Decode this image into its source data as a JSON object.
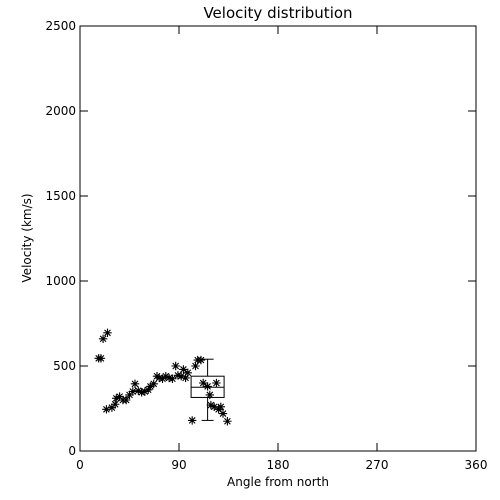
{
  "chart_data": {
    "type": "scatter",
    "title": "Velocity distribution",
    "xlabel": "Angle from north",
    "ylabel": "Velocity (km/s)",
    "xlim": [
      0,
      360
    ],
    "ylim": [
      0,
      2500
    ],
    "xticks": [
      0,
      90,
      180,
      270,
      360
    ],
    "yticks": [
      0,
      500,
      1000,
      1500,
      2000,
      2500
    ],
    "marker": "asterisk",
    "grid": false,
    "points": [
      {
        "x": 17,
        "y": 545
      },
      {
        "x": 19,
        "y": 545
      },
      {
        "x": 21,
        "y": 660
      },
      {
        "x": 25,
        "y": 695
      },
      {
        "x": 24,
        "y": 245
      },
      {
        "x": 29,
        "y": 255
      },
      {
        "x": 32,
        "y": 275
      },
      {
        "x": 33,
        "y": 310
      },
      {
        "x": 36,
        "y": 320
      },
      {
        "x": 39,
        "y": 300
      },
      {
        "x": 42,
        "y": 300
      },
      {
        "x": 45,
        "y": 330
      },
      {
        "x": 48,
        "y": 350
      },
      {
        "x": 50,
        "y": 395
      },
      {
        "x": 53,
        "y": 355
      },
      {
        "x": 56,
        "y": 345
      },
      {
        "x": 59,
        "y": 350
      },
      {
        "x": 62,
        "y": 360
      },
      {
        "x": 64,
        "y": 380
      },
      {
        "x": 67,
        "y": 395
      },
      {
        "x": 70,
        "y": 440
      },
      {
        "x": 72,
        "y": 430
      },
      {
        "x": 75,
        "y": 425
      },
      {
        "x": 78,
        "y": 440
      },
      {
        "x": 81,
        "y": 430
      },
      {
        "x": 84,
        "y": 425
      },
      {
        "x": 87,
        "y": 500
      },
      {
        "x": 89,
        "y": 445
      },
      {
        "x": 92,
        "y": 440
      },
      {
        "x": 94,
        "y": 480
      },
      {
        "x": 96,
        "y": 430
      },
      {
        "x": 98,
        "y": 460
      },
      {
        "x": 102,
        "y": 180
      },
      {
        "x": 105,
        "y": 500
      },
      {
        "x": 107,
        "y": 535
      },
      {
        "x": 110,
        "y": 535
      },
      {
        "x": 112,
        "y": 400
      },
      {
        "x": 116,
        "y": 380
      },
      {
        "x": 118,
        "y": 330
      },
      {
        "x": 119,
        "y": 270
      },
      {
        "x": 122,
        "y": 260
      },
      {
        "x": 124,
        "y": 400
      },
      {
        "x": 126,
        "y": 245
      },
      {
        "x": 128,
        "y": 260
      },
      {
        "x": 130,
        "y": 220
      },
      {
        "x": 134,
        "y": 175
      }
    ],
    "boxplot": {
      "x_range": [
        101,
        131
      ],
      "x_center": 116,
      "whisker_low": 180,
      "q1": 315,
      "median": 375,
      "q3": 440,
      "whisker_high": 540
    }
  }
}
